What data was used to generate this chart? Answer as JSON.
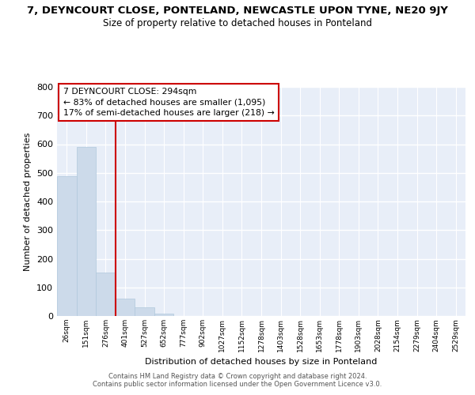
{
  "title1": "7, DEYNCOURT CLOSE, PONTELAND, NEWCASTLE UPON TYNE, NE20 9JY",
  "title2": "Size of property relative to detached houses in Ponteland",
  "xlabel": "Distribution of detached houses by size in Ponteland",
  "ylabel": "Number of detached properties",
  "categories": [
    "26sqm",
    "151sqm",
    "276sqm",
    "401sqm",
    "527sqm",
    "652sqm",
    "777sqm",
    "902sqm",
    "1027sqm",
    "1152sqm",
    "1278sqm",
    "1403sqm",
    "1528sqm",
    "1653sqm",
    "1778sqm",
    "1903sqm",
    "2028sqm",
    "2154sqm",
    "2279sqm",
    "2404sqm",
    "2529sqm"
  ],
  "values": [
    487,
    590,
    152,
    62,
    30,
    8,
    0,
    0,
    0,
    0,
    0,
    0,
    0,
    0,
    0,
    0,
    0,
    0,
    0,
    0,
    0
  ],
  "bar_color": "#ccdaea",
  "bar_edge_color": "#b0c8dc",
  "vline_color": "#cc0000",
  "vline_pos": 2.5,
  "annotation_text_line1": "7 DEYNCOURT CLOSE: 294sqm",
  "annotation_text_line2": "← 83% of detached houses are smaller (1,095)",
  "annotation_text_line3": "17% of semi-detached houses are larger (218) →",
  "ylim": [
    0,
    800
  ],
  "yticks": [
    0,
    100,
    200,
    300,
    400,
    500,
    600,
    700,
    800
  ],
  "background_color": "#ffffff",
  "plot_bg_color": "#e8eef8",
  "grid_color": "#ffffff",
  "footer1": "Contains HM Land Registry data © Crown copyright and database right 2024.",
  "footer2": "Contains public sector information licensed under the Open Government Licence v3.0."
}
